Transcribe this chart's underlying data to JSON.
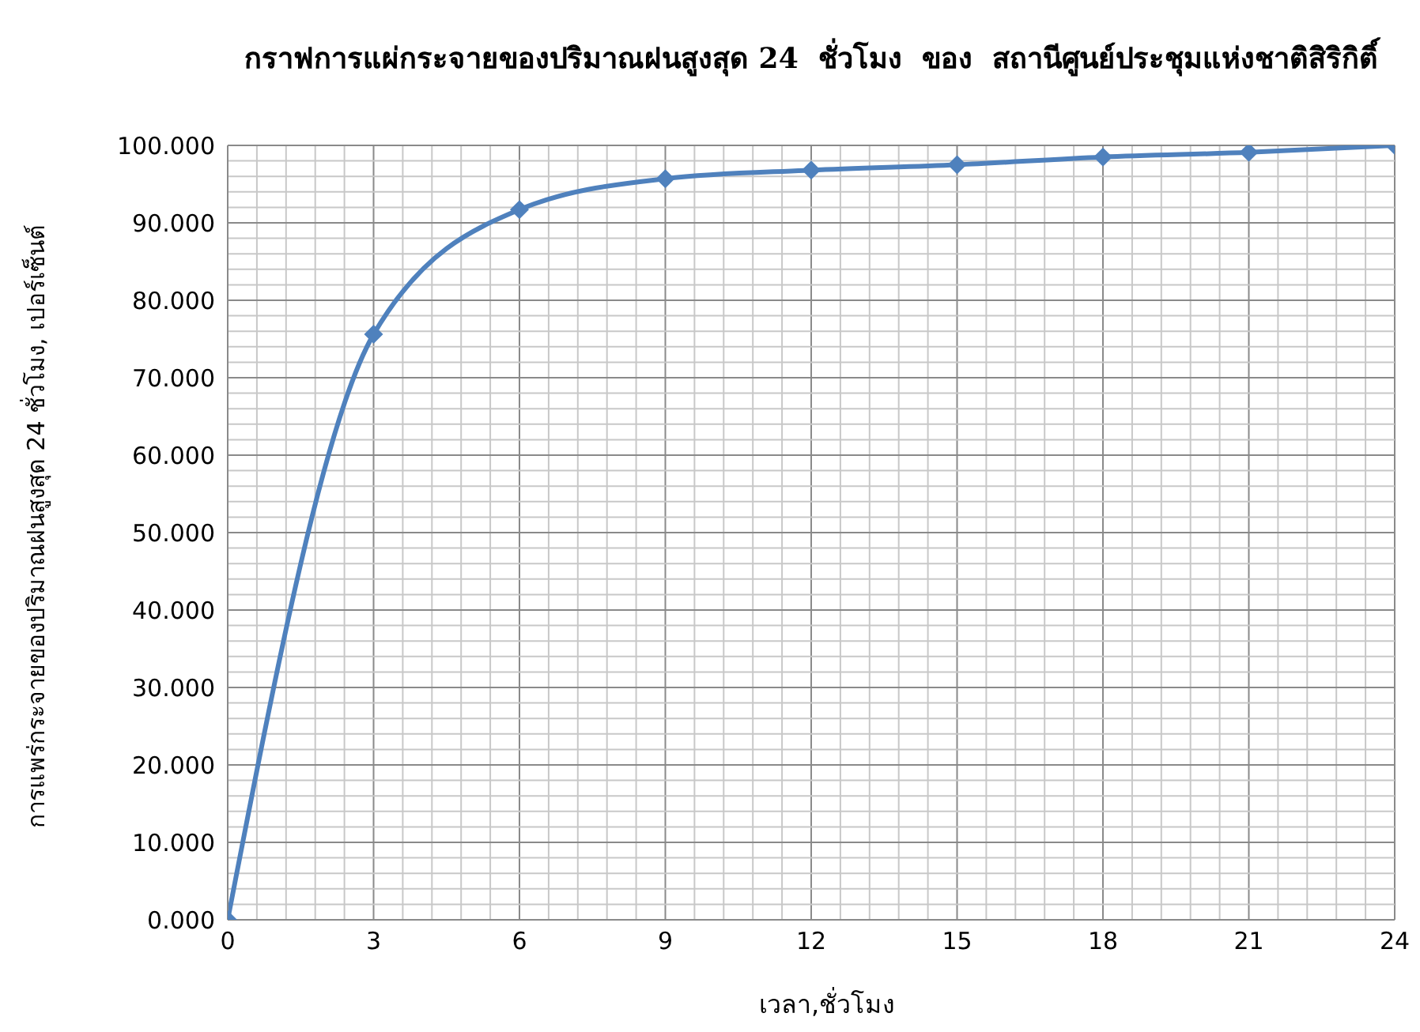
{
  "chart_data": {
    "type": "line",
    "title": "กราฟการแผ่กระจายของปริมาณฝนสูงสุด 24  ชั่วโมง  ของ  สถานีศูนย์ประชุมแห่งชาติสิริกิติ์",
    "xlabel": "เวลา,ชั่วโมง",
    "ylabel": "การแพร่กระจายของปริมาณฝนสูงสุด 24 ชั่วโมง, เปอร์เซ็นต์",
    "x": [
      0,
      3,
      6,
      9,
      12,
      15,
      18,
      21,
      24
    ],
    "series": [
      {
        "color": "#4f81bd",
        "values": [
          0,
          75.6,
          91.7,
          95.7,
          96.8,
          97.5,
          98.5,
          99.1,
          100
        ]
      }
    ],
    "xlim": [
      0,
      24
    ],
    "xticks": [
      0,
      {
        "value": 0.6,
        "label": null
      },
      {
        "value": 1.2,
        "label": null
      },
      {
        "value": 1.8,
        "label": null
      },
      {
        "value": 2.4,
        "label": null
      },
      3,
      {
        "value": 3.6,
        "label": null
      },
      {
        "value": 4.2,
        "label": null
      },
      {
        "value": 4.8,
        "label": null
      },
      {
        "value": 5.4,
        "label": null
      },
      6,
      {
        "value": 6.6,
        "label": null
      },
      {
        "value": 7.2,
        "label": null
      },
      {
        "value": 7.8,
        "label": null
      },
      {
        "value": 8.4,
        "label": null
      },
      9,
      {
        "value": 9.6,
        "label": null
      },
      {
        "value": 10.2,
        "label": null
      },
      {
        "value": 10.8,
        "label": null
      },
      {
        "value": 11.4,
        "label": null
      },
      12,
      {
        "value": 12.6,
        "label": null
      },
      {
        "value": 13.2,
        "label": null
      },
      {
        "value": 13.8,
        "label": null
      },
      {
        "value": 14.4,
        "label": null
      },
      15,
      {
        "value": 15.6,
        "label": null
      },
      {
        "value": 16.2,
        "label": null
      },
      {
        "value": 16.8,
        "label": null
      },
      {
        "value": 17.4,
        "label": null
      },
      18,
      {
        "value": 18.6,
        "label": null
      },
      {
        "value": 19.2,
        "label": null
      },
      {
        "value": 19.8,
        "label": null
      },
      {
        "value": 20.4,
        "label": null
      },
      21,
      {
        "value": 21.6,
        "label": null
      },
      {
        "value": 22.2,
        "label": null
      },
      {
        "value": 22.8,
        "label": null
      },
      {
        "value": 23.4,
        "label": null
      },
      24
    ],
    "ylim": [
      0,
      100
    ],
    "yticks": [
      {
        "value": 0,
        "label": "0.000"
      },
      {
        "value": 2,
        "label": null
      },
      {
        "value": 4,
        "label": null
      },
      {
        "value": 6,
        "label": null
      },
      {
        "value": 8,
        "label": null
      },
      {
        "value": 10,
        "label": "10.000"
      },
      {
        "value": 12,
        "label": null
      },
      {
        "value": 14,
        "label": null
      },
      {
        "value": 16,
        "label": null
      },
      {
        "value": 18,
        "label": null
      },
      {
        "value": 20,
        "label": "20.000"
      },
      {
        "value": 22,
        "label": null
      },
      {
        "value": 24,
        "label": null
      },
      {
        "value": 26,
        "label": null
      },
      {
        "value": 28,
        "label": null
      },
      {
        "value": 30,
        "label": "30.000"
      },
      {
        "value": 32,
        "label": null
      },
      {
        "value": 34,
        "label": null
      },
      {
        "value": 36,
        "label": null
      },
      {
        "value": 38,
        "label": null
      },
      {
        "value": 40,
        "label": "40.000"
      },
      {
        "value": 42,
        "label": null
      },
      {
        "value": 44,
        "label": null
      },
      {
        "value": 46,
        "label": null
      },
      {
        "value": 48,
        "label": null
      },
      {
        "value": 50,
        "label": "50.000"
      },
      {
        "value": 52,
        "label": null
      },
      {
        "value": 54,
        "label": null
      },
      {
        "value": 56,
        "label": null
      },
      {
        "value": 58,
        "label": null
      },
      {
        "value": 60,
        "label": "60.000"
      },
      {
        "value": 62,
        "label": null
      },
      {
        "value": 64,
        "label": null
      },
      {
        "value": 66,
        "label": null
      },
      {
        "value": 68,
        "label": null
      },
      {
        "value": 70,
        "label": "70.000"
      },
      {
        "value": 72,
        "label": null
      },
      {
        "value": 74,
        "label": null
      },
      {
        "value": 76,
        "label": null
      },
      {
        "value": 78,
        "label": null
      },
      {
        "value": 80,
        "label": "80.000"
      },
      {
        "value": 82,
        "label": null
      },
      {
        "value": 84,
        "label": null
      },
      {
        "value": 86,
        "label": null
      },
      {
        "value": 88,
        "label": null
      },
      {
        "value": 90,
        "label": "90.000"
      },
      {
        "value": 92,
        "label": null
      },
      {
        "value": 94,
        "label": null
      },
      {
        "value": 96,
        "label": null
      },
      {
        "value": 98,
        "label": null
      },
      {
        "value": 100,
        "label": "100.000"
      }
    ],
    "grid": true,
    "legend": false,
    "marker": "diamond",
    "line_style": "solid"
  }
}
